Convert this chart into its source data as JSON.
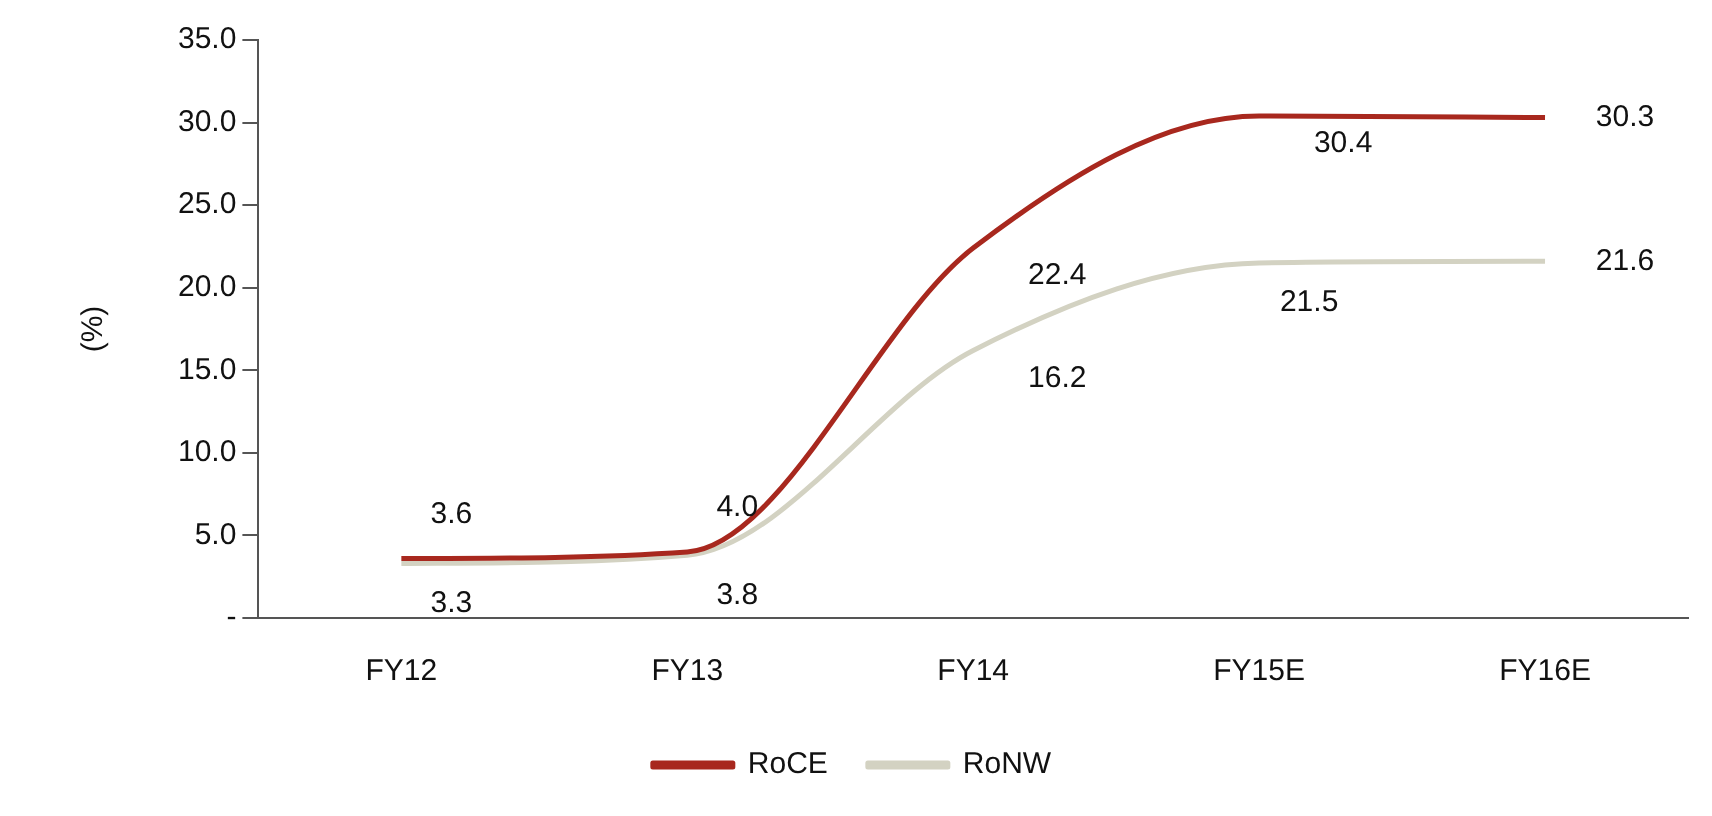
{
  "chart_data": {
    "type": "line",
    "ylabel": "(%)",
    "categories": [
      "FY12",
      "FY13",
      "FY14",
      "FY15E",
      "FY16E"
    ],
    "series": [
      {
        "name": "RoCE",
        "color": "#a8281e",
        "values": [
          3.6,
          4.0,
          22.4,
          30.4,
          30.3
        ],
        "value_labels": [
          "3.6",
          "4.0",
          "22.4",
          "30.4",
          "30.3"
        ]
      },
      {
        "name": "RoNW",
        "color": "#d3d2c2",
        "values": [
          3.3,
          3.8,
          16.2,
          21.5,
          21.6
        ],
        "value_labels": [
          "3.3",
          "3.8",
          "16.2",
          "21.5",
          "21.6"
        ]
      }
    ],
    "ylim": [
      0,
      35
    ],
    "yticks": [
      {
        "value": 0,
        "label": "-"
      },
      {
        "value": 5,
        "label": "5.0"
      },
      {
        "value": 10,
        "label": "10.0"
      },
      {
        "value": 15,
        "label": "15.0"
      },
      {
        "value": 20,
        "label": "20.0"
      },
      {
        "value": 25,
        "label": "25.0"
      },
      {
        "value": 30,
        "label": "30.0"
      },
      {
        "value": 35,
        "label": "35.0"
      }
    ],
    "grid": false,
    "legend": "bottom",
    "marker": "none",
    "line_style": "solid"
  }
}
